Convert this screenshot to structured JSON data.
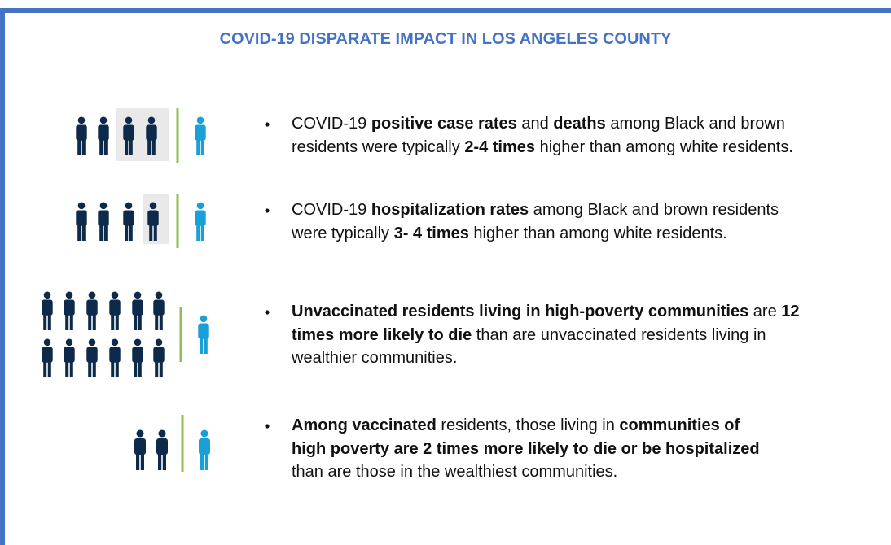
{
  "title": "COVID-19 DISPARATE IMPACT IN LOS ANGELES COUNTY",
  "items": [
    {
      "lines": [
        [
          {
            "text": "COVID-19 "
          },
          {
            "text": "positive case rates",
            "bold": true
          },
          {
            "text": " and "
          },
          {
            "text": "deaths",
            "bold": true
          },
          {
            "text": " among Black and brown"
          }
        ],
        [
          {
            "text": "residents were typically "
          },
          {
            "text": "2-4 times",
            "bold": true
          },
          {
            "text": " higher than among white residents."
          }
        ]
      ]
    },
    {
      "lines": [
        [
          {
            "text": "COVID-19 "
          },
          {
            "text": "hospitalization rates",
            "bold": true
          },
          {
            "text": " among Black and brown residents"
          }
        ],
        [
          {
            "text": "were typically "
          },
          {
            "text": "3- 4 times",
            "bold": true
          },
          {
            "text": " higher than among white residents."
          }
        ]
      ]
    },
    {
      "lines": [
        [
          {
            "text": "Unvaccinated residents living in high-poverty communities",
            "bold": true
          },
          {
            "text": " are "
          },
          {
            "text": "12",
            "bold": true
          }
        ],
        [
          {
            "text": "times more likely to die",
            "bold": true
          },
          {
            "text": " than are unvaccinated residents living in"
          }
        ],
        [
          {
            "text": "wealthier communities."
          }
        ]
      ]
    },
    {
      "lines": [
        [
          {
            "text": "Among vaccinated",
            "bold": true
          },
          {
            "text": " residents, those living in "
          },
          {
            "text": "communities of",
            "bold": true
          }
        ],
        [
          {
            "text": "high poverty are 2 times more likely to die or be hospitalized",
            "bold": true
          }
        ],
        [
          {
            "text": "than are those in the wealthiest communities."
          }
        ]
      ]
    }
  ]
}
